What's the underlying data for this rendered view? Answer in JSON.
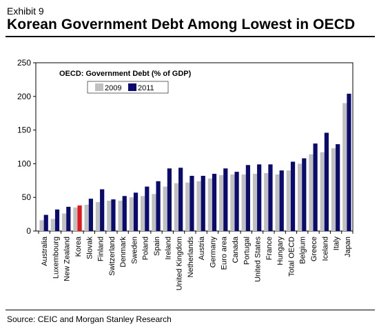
{
  "exhibit_label": "Exhibit 9",
  "title": "Korean Government Debt Among Lowest in OECD",
  "source": "Source: CEIC and Morgan Stanley Research",
  "chart_data": {
    "type": "bar",
    "title": "OECD: Government Debt (% of GDP)",
    "xlabel": "",
    "ylabel": "",
    "ylim": [
      0,
      250
    ],
    "yticks": [
      0,
      50,
      100,
      150,
      200,
      250
    ],
    "grid": false,
    "legend_position": "top-left",
    "categories": [
      "Australia",
      "Luxembourg",
      "New Zealand",
      "Korea",
      "Slovak",
      "Finland",
      "Switzerland",
      "Denmark",
      "Sweden",
      "Poland",
      "Spain",
      "Ireland",
      "United Kingdom",
      "Netherlands",
      "Austria",
      "Germany",
      "Euro area",
      "Canada",
      "Portugal",
      "United States",
      "France",
      "Hungary",
      "Total OECD",
      "Belgium",
      "Greece",
      "Iceland",
      "Italy",
      "Japan"
    ],
    "series": [
      {
        "name": "2009",
        "color": "#c0c0c0",
        "values": [
          16,
          18,
          26,
          35,
          39,
          43,
          45,
          45,
          50,
          52,
          55,
          66,
          71,
          72,
          74,
          78,
          83,
          84,
          84,
          85,
          86,
          84,
          90,
          100,
          114,
          117,
          123,
          190
        ]
      },
      {
        "name": "2011",
        "color": "#0b0b6e",
        "values": [
          24,
          32,
          36,
          38,
          48,
          62,
          47,
          52,
          57,
          66,
          74,
          93,
          94,
          82,
          82,
          85,
          93,
          88,
          98,
          99,
          99,
          90,
          103,
          108,
          130,
          146,
          129,
          204
        ]
      }
    ],
    "highlight": {
      "category": "Korea",
      "series": "2011",
      "color": "#e3171c"
    }
  }
}
